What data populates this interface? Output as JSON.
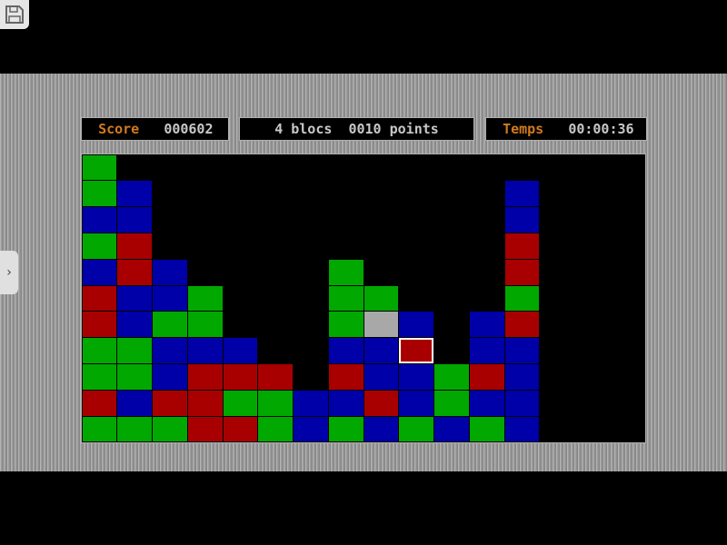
{
  "header": {
    "score_label": "Score",
    "score_value": "000602",
    "selection_text": "4 blocs  0010 points",
    "time_label": "Temps",
    "time_value": "00:00:36"
  },
  "board": {
    "columns": 16,
    "rows": 11,
    "legend": {
      "G": "green",
      "B": "blue",
      "R": "red",
      "S": "gray",
      ".": "empty"
    },
    "colors": {
      "G": "#00a800",
      "B": "#0000a8",
      "R": "#a80000",
      "S": "#a8a8a8"
    },
    "grid": [
      "G...............",
      "GB..........B...",
      "BB..........B...",
      "GR..........R...",
      "BRB....G....R...",
      "RBBG...GG...G...",
      "RBGG...GSB.BR...",
      "GGBBB..BBR.BB...",
      "GGBRRR.RBBGRB...",
      "RBRRGGBBRBGBB...",
      "GGGRRGBGBGBGB..."
    ],
    "selected": {
      "row": 7,
      "col": 9
    }
  },
  "overlay": {
    "save_icon": "floppy-disk-icon",
    "side_icon": "chevron-right-icon",
    "side_glyph": "›"
  }
}
